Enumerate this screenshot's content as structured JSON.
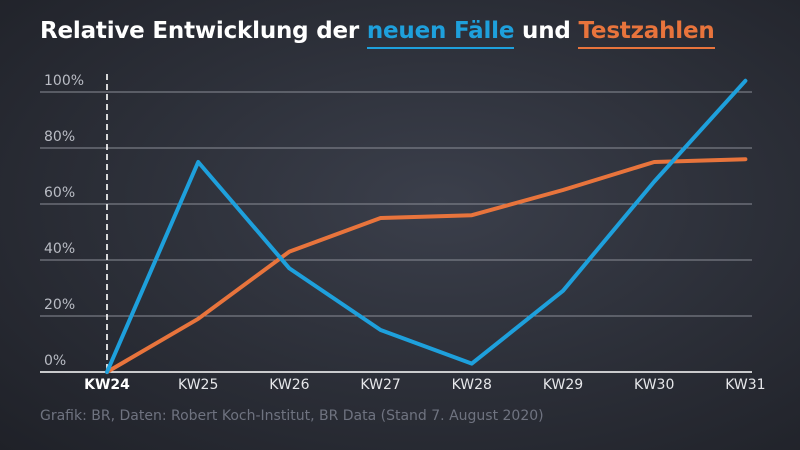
{
  "title": {
    "prefix": "Relative Entwicklung der ",
    "highlight1": "neuen Fälle",
    "middle": " und ",
    "highlight2": "Testzahlen"
  },
  "footer": "Grafik: BR, Daten: Robert Koch-Institut, BR Data (Stand 7. August 2020)",
  "colors": {
    "blue": "#1ea0dc",
    "orange": "#e8743c",
    "grid": "#8a8d96",
    "axis": "#ffffff"
  },
  "chart_data": {
    "type": "line",
    "categories": [
      "KW24",
      "KW25",
      "KW26",
      "KW27",
      "KW28",
      "KW29",
      "KW30",
      "KW31"
    ],
    "bold_category": "KW24",
    "yticks": [
      "0%",
      "20%",
      "40%",
      "60%",
      "80%",
      "100%"
    ],
    "ylim": [
      0,
      100
    ],
    "grid": true,
    "series": [
      {
        "name": "neuen Fälle",
        "color": "#1ea0dc",
        "values": [
          0,
          75,
          37,
          15,
          3,
          29,
          68,
          104
        ]
      },
      {
        "name": "Testzahlen",
        "color": "#e8743c",
        "values": [
          0,
          19,
          43,
          55,
          56,
          65,
          75,
          76
        ]
      }
    ]
  }
}
